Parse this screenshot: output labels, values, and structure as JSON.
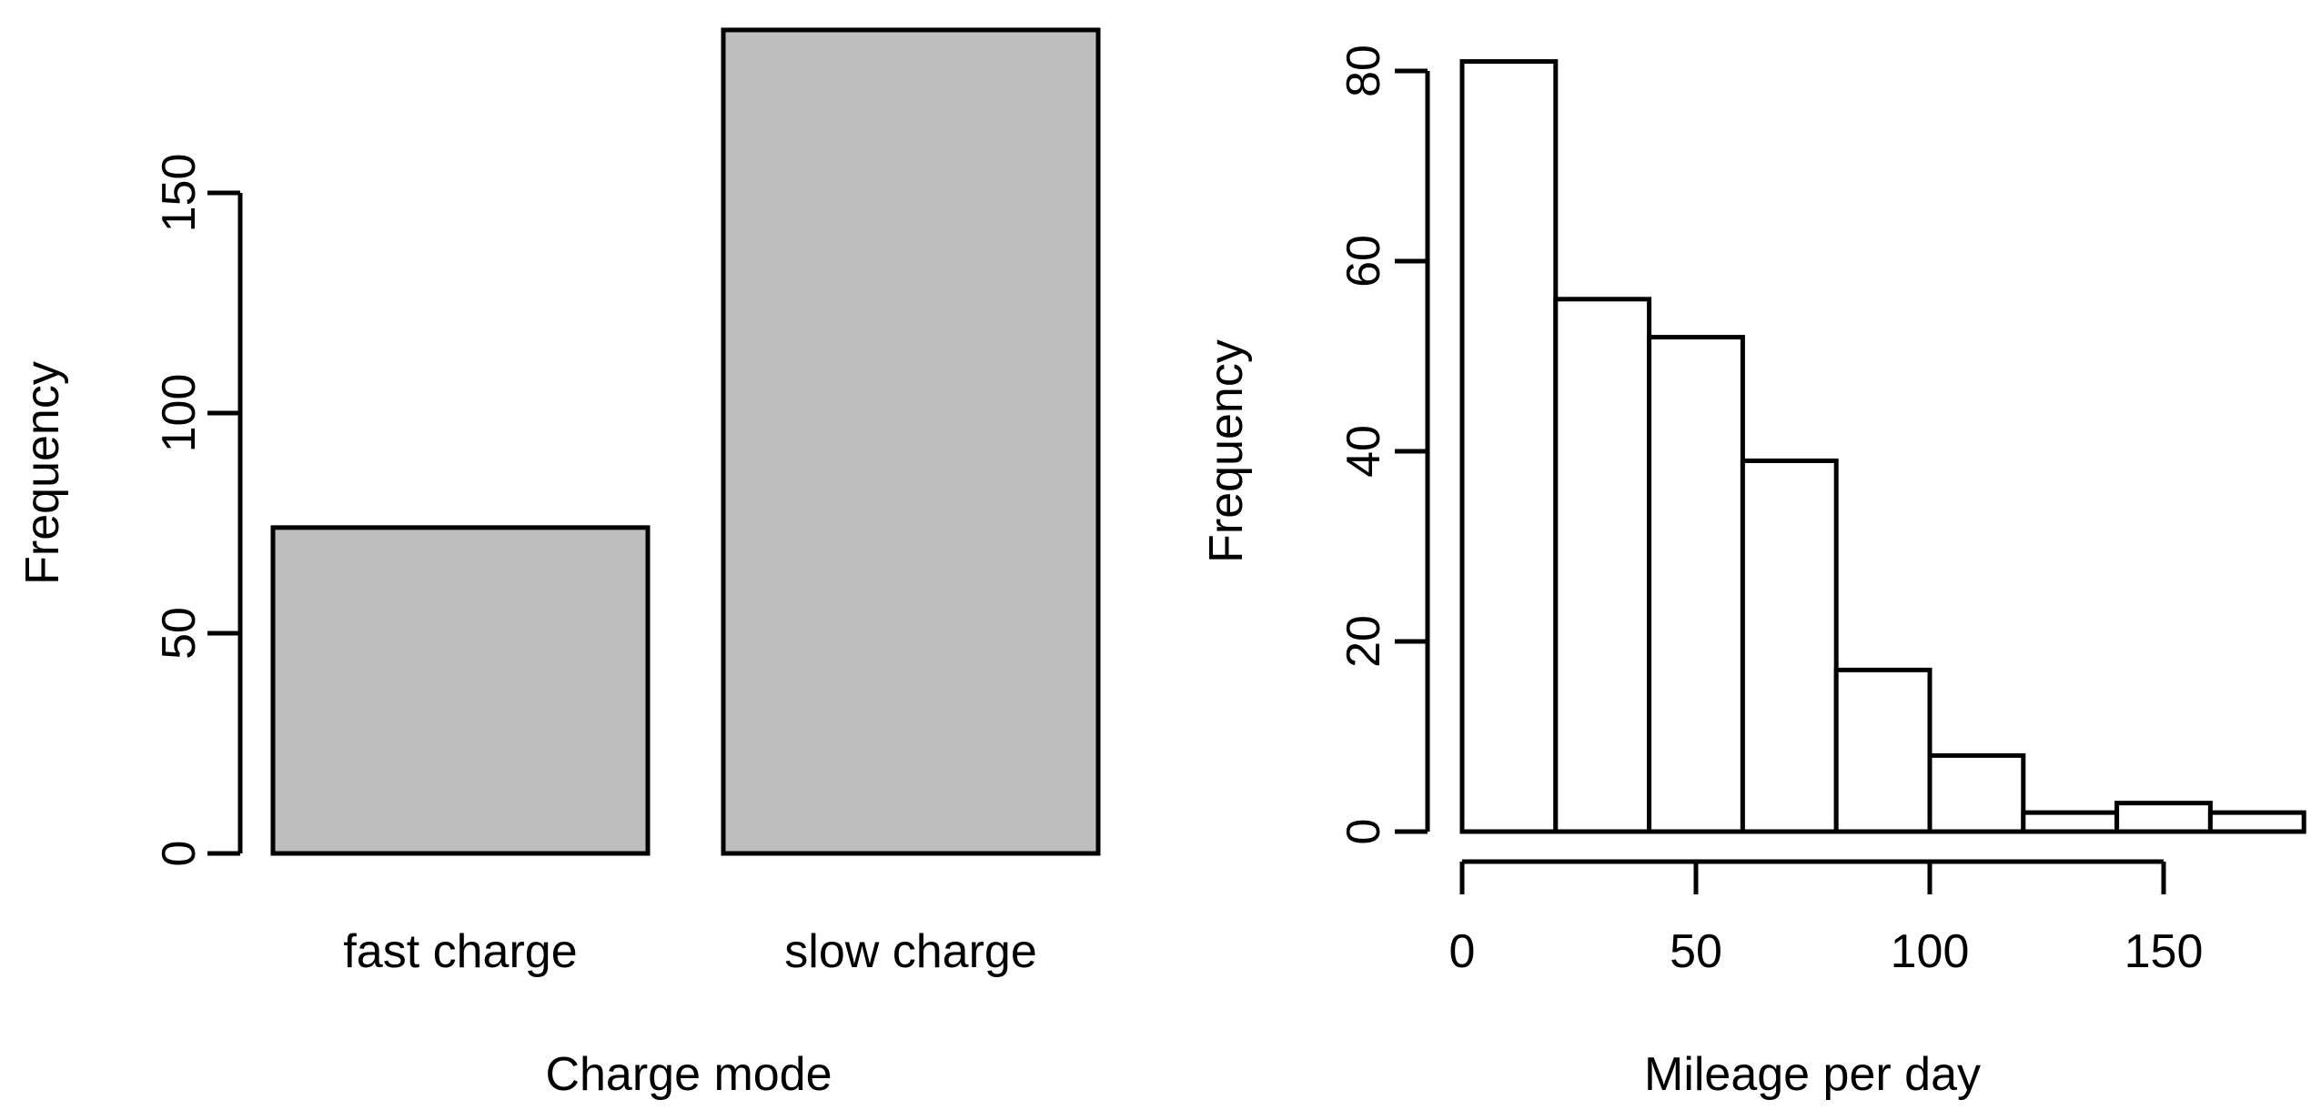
{
  "page": {
    "background": "#ffffff",
    "text_color": "#000000",
    "axis_color": "#000000"
  },
  "chart_data": [
    {
      "type": "bar",
      "title": "",
      "categories": [
        "fast charge",
        "slow charge"
      ],
      "values": [
        74,
        187
      ],
      "xlabel": "Charge mode",
      "ylabel": "Frequency",
      "yticks": [
        0,
        50,
        100,
        150
      ],
      "ylim": [
        0,
        190
      ],
      "bar_fill": "#bebebe",
      "bar_stroke": "#000000",
      "grid": false,
      "legend": "none"
    },
    {
      "type": "histogram",
      "title": "",
      "xlabel": "Mileage per day",
      "ylabel": "Frequency",
      "bin_edges": [
        0,
        20,
        40,
        60,
        80,
        100,
        120,
        140,
        160,
        180
      ],
      "counts": [
        81,
        56,
        52,
        39,
        17,
        8,
        2,
        3,
        2
      ],
      "xticks": [
        0,
        50,
        100,
        150
      ],
      "yticks": [
        0,
        20,
        40,
        60,
        80
      ],
      "xlim": [
        0,
        180
      ],
      "ylim": [
        0,
        81
      ],
      "bar_fill": "#ffffff",
      "bar_stroke": "#000000",
      "grid": false,
      "legend": "none"
    }
  ]
}
